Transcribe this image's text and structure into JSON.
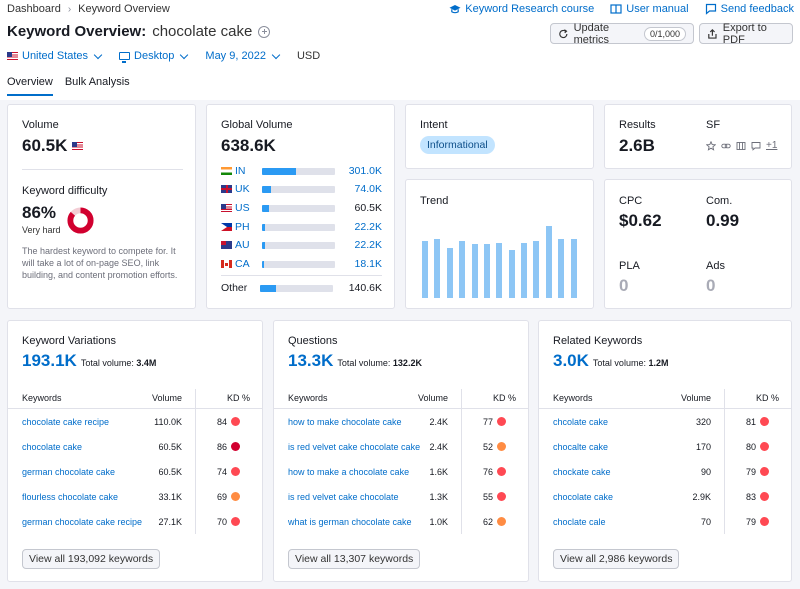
{
  "header": {
    "breadcrumb": [
      "Dashboard",
      "Keyword Overview"
    ],
    "links": [
      "Keyword Research course",
      "User manual",
      "Send feedback"
    ],
    "title": "Keyword Overview:",
    "keyword": "chocolate cake",
    "update_label": "Update metrics",
    "update_counter": "0/1,000",
    "export_label": "Export to PDF",
    "filters": {
      "country": "United States",
      "device": "Desktop",
      "date": "May 9, 2022",
      "currency": "USD"
    },
    "tabs": [
      "Overview",
      "Bulk Analysis"
    ]
  },
  "volume": {
    "label": "Volume",
    "value": "60.5K",
    "kd_label": "Keyword difficulty",
    "kd_value": "86%",
    "kd_percent": 86,
    "kd_status": "Very hard",
    "kd_description": "The hardest keyword to compete for. It will take a lot of on-page SEO, link building, and content promotion efforts."
  },
  "global": {
    "label": "Global Volume",
    "value": "638.6K",
    "countries": [
      {
        "code": "IN",
        "value": "301.0K",
        "share": 0.47
      },
      {
        "code": "UK",
        "value": "74.0K",
        "share": 0.12
      },
      {
        "code": "US",
        "value": "60.5K",
        "share": 0.1
      },
      {
        "code": "PH",
        "value": "22.2K",
        "share": 0.035
      },
      {
        "code": "AU",
        "value": "22.2K",
        "share": 0.035
      },
      {
        "code": "CA",
        "value": "18.1K",
        "share": 0.028
      }
    ],
    "other": {
      "label": "Other",
      "value": "140.6K",
      "share": 0.22
    }
  },
  "intent": {
    "label": "Intent",
    "value": "Informational"
  },
  "trend": {
    "label": "Trend",
    "values": [
      0.68,
      0.7,
      0.6,
      0.68,
      0.64,
      0.64,
      0.66,
      0.57,
      0.65,
      0.68,
      0.86,
      0.7,
      0.7
    ]
  },
  "results": {
    "label": "Results",
    "value": "2.6B",
    "sf_label": "SF",
    "sf_more": "+1"
  },
  "cpc": {
    "cpc_label": "CPC",
    "cpc_value": "$0.62",
    "com_label": "Com.",
    "com_value": "0.99",
    "pla_label": "PLA",
    "pla_value": "0",
    "ads_label": "Ads",
    "ads_value": "0"
  },
  "colors": {
    "accent": "#006dca",
    "kd_red": "#d1002f",
    "kd_orange": "#ff8c43",
    "kd_pink": "#ff4953"
  },
  "tables": [
    {
      "title": "Keyword Variations",
      "count": "193.1K",
      "total_label": "Total volume:",
      "total": "3.4M",
      "columns": [
        "Keywords",
        "Volume",
        "KD %"
      ],
      "rows": [
        {
          "keyword": "chocolate cake recipe",
          "volume": "110.0K",
          "kd": "84",
          "color": "#ff4953"
        },
        {
          "keyword": "chocolate cake",
          "volume": "60.5K",
          "kd": "86",
          "color": "#d1002f"
        },
        {
          "keyword": "german chocolate cake",
          "volume": "60.5K",
          "kd": "74",
          "color": "#ff4953"
        },
        {
          "keyword": "flourless chocolate cake",
          "volume": "33.1K",
          "kd": "69",
          "color": "#ff8c43"
        },
        {
          "keyword": "german chocolate cake recipe",
          "volume": "27.1K",
          "kd": "70",
          "color": "#ff4953"
        }
      ],
      "view_all": "View all 193,092 keywords"
    },
    {
      "title": "Questions",
      "count": "13.3K",
      "total_label": "Total volume:",
      "total": "132.2K",
      "columns": [
        "Keywords",
        "Volume",
        "KD %"
      ],
      "rows": [
        {
          "keyword": "how to make chocolate cake",
          "volume": "2.4K",
          "kd": "77",
          "color": "#ff4953"
        },
        {
          "keyword": "is red velvet cake chocolate cake",
          "volume": "2.4K",
          "kd": "52",
          "color": "#ff8c43"
        },
        {
          "keyword": "how to make a chocolate cake",
          "volume": "1.6K",
          "kd": "76",
          "color": "#ff4953"
        },
        {
          "keyword": "is red velvet cake chocolate",
          "volume": "1.3K",
          "kd": "55",
          "color": "#ff4953"
        },
        {
          "keyword": "what is german chocolate cake",
          "volume": "1.0K",
          "kd": "62",
          "color": "#ff8c43"
        }
      ],
      "view_all": "View all 13,307 keywords"
    },
    {
      "title": "Related Keywords",
      "count": "3.0K",
      "total_label": "Total volume:",
      "total": "1.2M",
      "columns": [
        "Keywords",
        "Volume",
        "KD %"
      ],
      "rows": [
        {
          "keyword": "chcolate cake",
          "volume": "320",
          "kd": "81",
          "color": "#ff4953"
        },
        {
          "keyword": "chocalte cake",
          "volume": "170",
          "kd": "80",
          "color": "#ff4953"
        },
        {
          "keyword": "chockate cake",
          "volume": "90",
          "kd": "79",
          "color": "#ff4953"
        },
        {
          "keyword": "chocolate cake",
          "volume": "2.9K",
          "kd": "83",
          "color": "#ff4953"
        },
        {
          "keyword": "choclate cale",
          "volume": "70",
          "kd": "79",
          "color": "#ff4953"
        }
      ],
      "view_all": "View all 2,986 keywords"
    }
  ]
}
